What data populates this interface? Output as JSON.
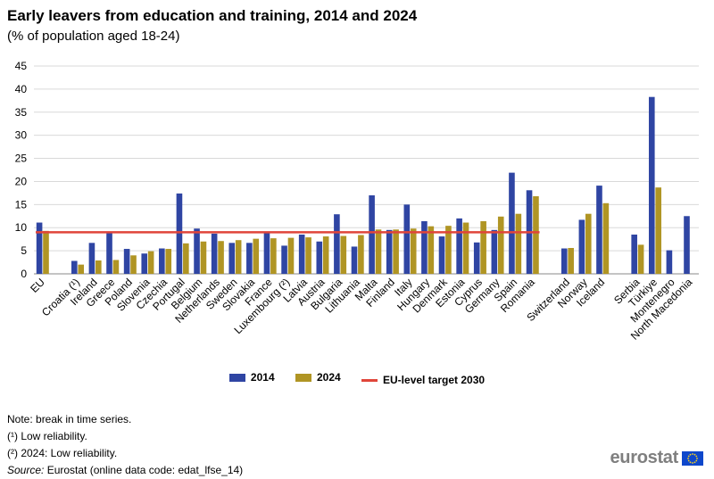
{
  "title": "Early leavers from education and training, 2014 and 2024",
  "subtitle": "(% of population aged 18-24)",
  "colors": {
    "s2014": "#2f45a3",
    "s2024": "#b09524",
    "target": "#e0453a",
    "grid": "#d9d9d9"
  },
  "chart_data": {
    "type": "bar",
    "title": "Early leavers from education and training, 2014 and 2024",
    "subtitle": "(% of population aged 18-24)",
    "xlabel": "",
    "ylabel": "",
    "ylim": [
      0,
      45
    ],
    "yticks": [
      0,
      5,
      10,
      15,
      20,
      25,
      30,
      35,
      40,
      45
    ],
    "grid": true,
    "legend_placement": "bottom",
    "categories": [
      "EU",
      "",
      "Croatia (¹)",
      "Ireland",
      "Greece",
      "Poland",
      "Slovenia",
      "Czechia",
      "Portugal",
      "Belgium",
      "Netherlands",
      "Sweden",
      "Slovakia",
      "France",
      "Luxembourg (²)",
      "Latvia",
      "Austria",
      "Bulgaria",
      "Lithuania",
      "Malta",
      "Finland",
      "Italy",
      "Hungary",
      "Denmark",
      "Estonia",
      "Cyprus",
      "Germany",
      "Spain",
      "Romania",
      "",
      "Switzerland",
      "Norway",
      "Iceland",
      "",
      "Serbia",
      "Türkiye",
      "Montenegro",
      "North Macedonia"
    ],
    "series": [
      {
        "name": "2014",
        "values": [
          11.1,
          null,
          2.8,
          6.7,
          9.0,
          5.4,
          4.4,
          5.5,
          17.4,
          9.8,
          8.7,
          6.7,
          6.7,
          9.0,
          6.1,
          8.5,
          7.0,
          12.9,
          5.9,
          17.0,
          9.5,
          15.0,
          11.4,
          8.1,
          12.0,
          6.8,
          9.5,
          21.9,
          18.1,
          null,
          5.5,
          11.7,
          19.1,
          null,
          8.5,
          38.3,
          5.1,
          12.5
        ]
      },
      {
        "name": "2024",
        "values": [
          9.3,
          null,
          2.0,
          2.9,
          3.0,
          4.0,
          4.9,
          5.4,
          6.6,
          7.0,
          7.1,
          7.3,
          7.6,
          7.7,
          7.8,
          7.9,
          8.1,
          8.2,
          8.4,
          9.6,
          9.6,
          9.8,
          10.3,
          10.4,
          11.1,
          11.4,
          12.4,
          13.0,
          16.8,
          null,
          5.6,
          13.0,
          15.3,
          null,
          6.3,
          18.7,
          null,
          null
        ]
      }
    ],
    "reference_line": {
      "name": "EU-level target 2030",
      "value": 9,
      "from": "EU",
      "to": "Romania"
    }
  },
  "legend": [
    {
      "label": "2014"
    },
    {
      "label": "2024"
    },
    {
      "label": "EU-level target 2030"
    }
  ],
  "notes": {
    "note": "Note: break in time series.",
    "n1": "(¹) Low reliability.",
    "n2": "(²) 2024: Low reliability.",
    "source_label": "Source:",
    "source_text": " Eurostat (online data code: edat_lfse_14)"
  },
  "logo": {
    "text": "eurostat",
    "icon": "eu-flag-icon"
  }
}
